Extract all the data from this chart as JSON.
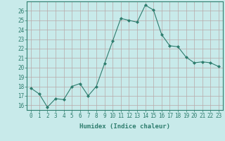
{
  "x": [
    0,
    1,
    2,
    3,
    4,
    5,
    6,
    7,
    8,
    9,
    10,
    11,
    12,
    13,
    14,
    15,
    16,
    17,
    18,
    19,
    20,
    21,
    22,
    23
  ],
  "y": [
    17.8,
    17.2,
    15.8,
    16.7,
    16.6,
    18.0,
    18.3,
    17.0,
    18.0,
    20.4,
    22.8,
    25.2,
    25.0,
    24.8,
    26.6,
    26.1,
    23.5,
    22.3,
    22.2,
    21.1,
    20.5,
    20.6,
    20.5,
    20.1
  ],
  "line_color": "#2e7d6e",
  "marker": "D",
  "marker_size": 2.0,
  "bg_color": "#c8eaea",
  "grid_color": "#b8a8a8",
  "xlabel": "Humidex (Indice chaleur)",
  "ylabel_ticks": [
    16,
    17,
    18,
    19,
    20,
    21,
    22,
    23,
    24,
    25,
    26
  ],
  "ylim": [
    15.5,
    27.0
  ],
  "xlim": [
    -0.5,
    23.5
  ],
  "tick_fontsize": 5.5,
  "xlabel_fontsize": 6.5
}
